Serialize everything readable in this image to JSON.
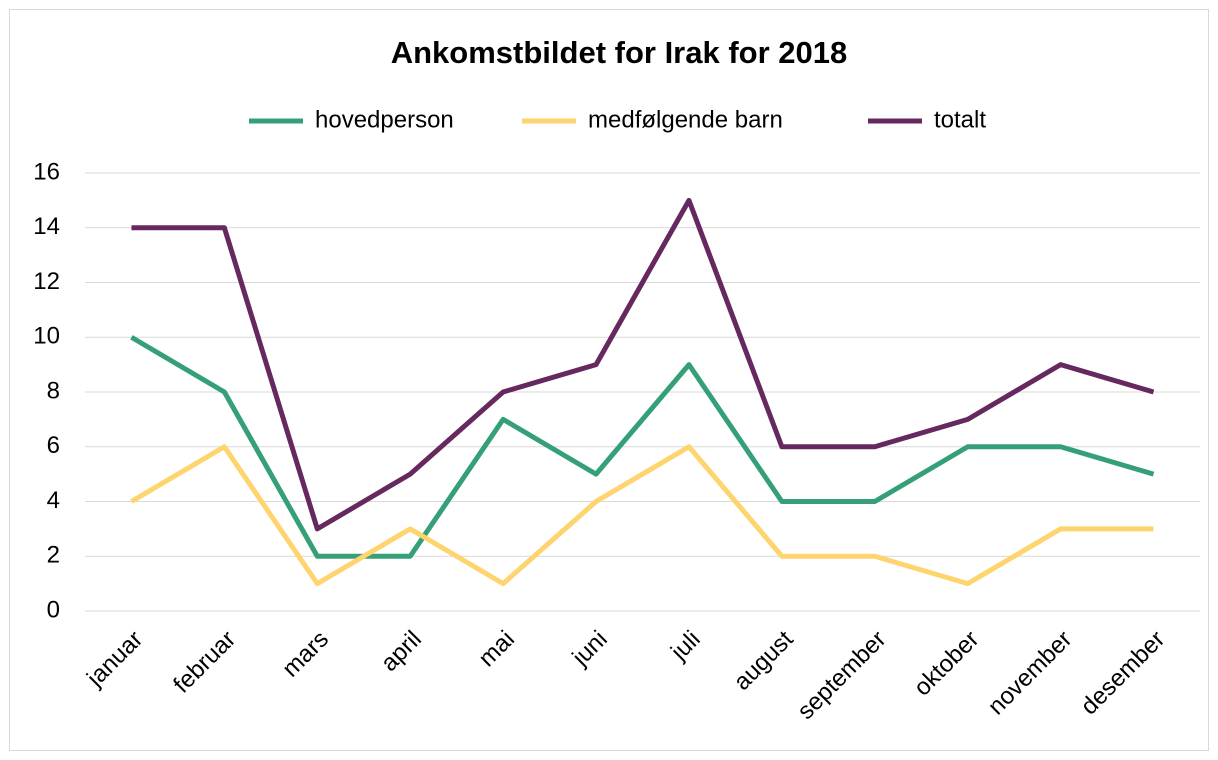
{
  "chart_data": {
    "type": "line",
    "title": "Ankomstbildet for Irak for 2018",
    "categories": [
      "januar",
      "februar",
      "mars",
      "april",
      "mai",
      "juni",
      "juli",
      "august",
      "september",
      "oktober",
      "november",
      "desember"
    ],
    "series": [
      {
        "name": "hovedperson",
        "color": "#35a077",
        "values": [
          10,
          8,
          2,
          2,
          7,
          5,
          9,
          4,
          4,
          6,
          6,
          5
        ]
      },
      {
        "name": "medfølgende barn",
        "color": "#fdd46e",
        "values": [
          4,
          6,
          1,
          3,
          1,
          4,
          6,
          2,
          2,
          1,
          3,
          3
        ]
      },
      {
        "name": "totalt",
        "color": "#65295f",
        "values": [
          14,
          14,
          3,
          5,
          8,
          9,
          15,
          6,
          6,
          7,
          9,
          8
        ]
      }
    ],
    "ylim": [
      0,
      16
    ],
    "yticks": [
      0,
      2,
      4,
      6,
      8,
      10,
      12,
      14,
      16
    ],
    "grid": true,
    "legend": "top"
  }
}
